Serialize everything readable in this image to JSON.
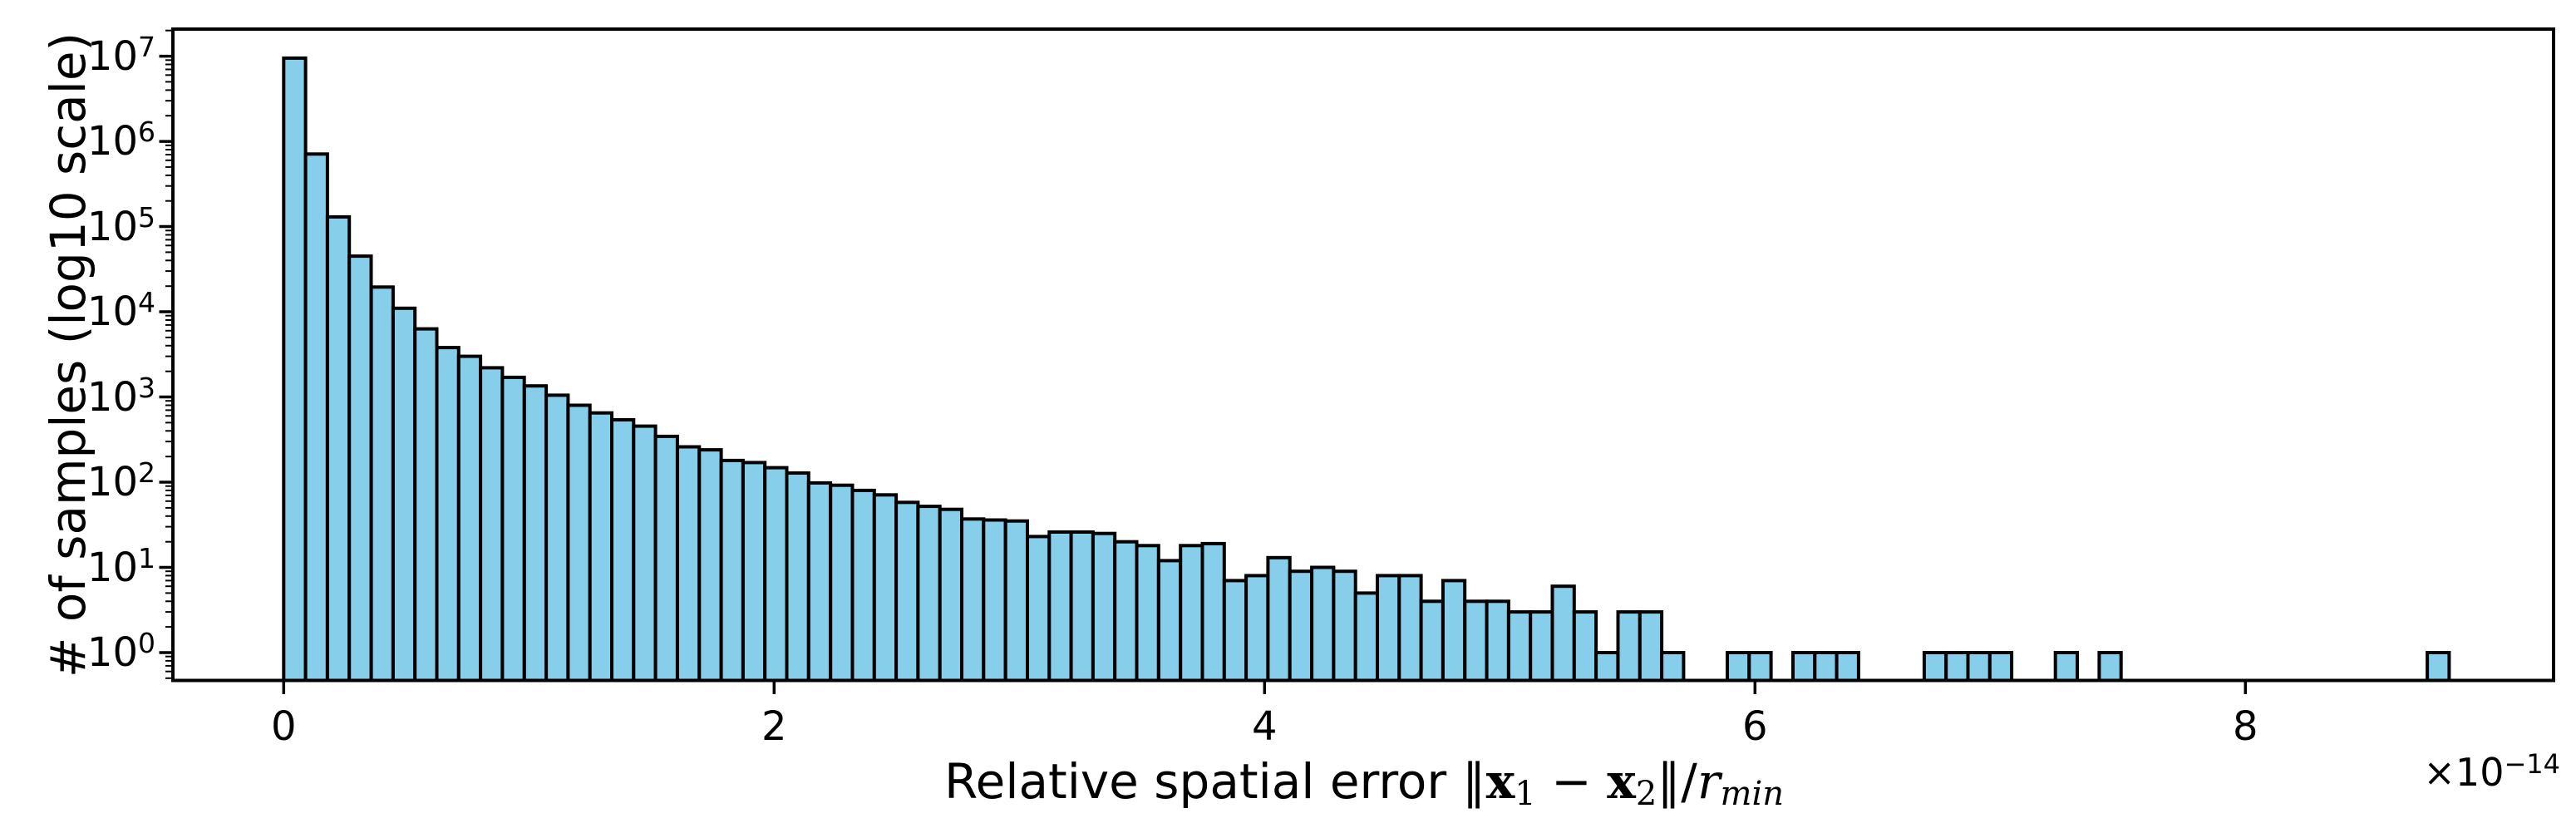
{
  "style": {
    "bar_fill": "#87CEEB",
    "bar_edge": "#000000",
    "axis_color": "#000000",
    "text_color": "#000000",
    "background": "#FFFFFF"
  },
  "ylabel": "# of samples (log10 scale)",
  "xlabel_parts": {
    "prefix": "Relative spatial error ",
    "norm_open": "∥",
    "x1": "x",
    "sub1": "1",
    "minus": " − ",
    "x2": "x",
    "sub2": "2",
    "norm_close": "∥",
    "slash": "/",
    "r": "r",
    "rsub": "min"
  },
  "offset": {
    "base": "×10",
    "exponent": "−14"
  },
  "chart_data": {
    "type": "bar",
    "subtype": "histogram",
    "title": "",
    "xlabel": "Relative spatial error ∥x1 − x2∥/rmin",
    "ylabel": "# of samples (log10 scale)",
    "legend": "none",
    "grid": false,
    "x_axis": {
      "ticks": [
        0,
        2,
        4,
        6,
        8
      ],
      "offset_label": "×10⁻¹⁴",
      "unit_multiplier": "1e-14",
      "xlim": [
        -0.45,
        9.27
      ]
    },
    "y_axis": {
      "scale": "log10",
      "base": "10",
      "tick_exponents": [
        0,
        1,
        2,
        3,
        4,
        5,
        6,
        7
      ],
      "ylim": [
        0.47,
        21000000
      ],
      "minor_ticks": true
    },
    "bins": {
      "start": 0,
      "width": 0.0892,
      "count": 100,
      "unit": "1e-14"
    },
    "values": [
      9500000,
      710000,
      130000,
      45000,
      19500,
      11000,
      6300,
      3800,
      3000,
      2200,
      1700,
      1350,
      1050,
      800,
      650,
      540,
      455,
      345,
      260,
      240,
      180,
      170,
      148,
      128,
      98,
      92,
      80,
      71,
      58,
      52,
      48,
      37,
      36,
      35,
      23,
      26,
      26,
      25,
      20,
      18,
      12,
      18,
      19,
      7,
      8,
      13,
      9,
      10,
      9,
      5,
      8,
      8,
      4,
      7,
      4,
      4,
      3,
      3,
      6,
      3,
      1,
      3,
      3,
      1,
      0,
      0,
      1,
      1,
      0,
      1,
      1,
      1,
      0,
      0,
      0,
      1,
      1,
      1,
      1,
      0,
      0,
      1,
      0,
      1,
      0,
      0,
      0,
      0,
      0,
      0,
      0,
      0,
      0,
      0,
      0,
      0,
      0,
      0,
      1,
      0
    ]
  }
}
